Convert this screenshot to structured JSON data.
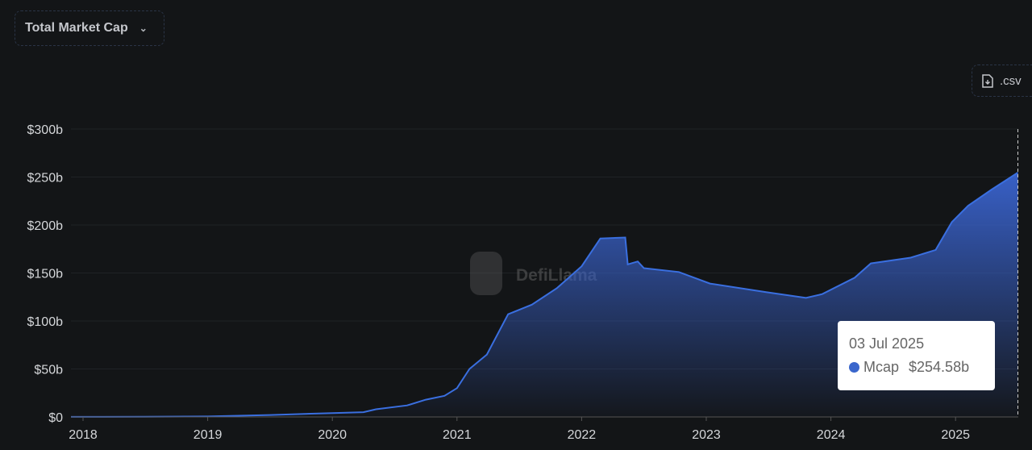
{
  "header": {
    "metric_select": "Total Market Cap",
    "csv_button": ".csv"
  },
  "watermark": "DefiLlama",
  "tooltip": {
    "date": "03 Jul 2025",
    "series": "Mcap",
    "value": "$254.58b"
  },
  "colors": {
    "line": "#3a6fe0",
    "background": "#131517",
    "marker": "#3a66cc"
  },
  "chart_data": {
    "type": "area",
    "ylim": [
      0,
      300
    ],
    "xlim": [
      2017.9,
      2025.51
    ],
    "yticks": [
      {
        "v": 0,
        "label": "$0"
      },
      {
        "v": 50,
        "label": "$50b"
      },
      {
        "v": 100,
        "label": "$100b"
      },
      {
        "v": 150,
        "label": "$150b"
      },
      {
        "v": 200,
        "label": "$200b"
      },
      {
        "v": 250,
        "label": "$250b"
      },
      {
        "v": 300,
        "label": "$300b"
      }
    ],
    "xticks": [
      {
        "v": 2018,
        "label": "2018"
      },
      {
        "v": 2019,
        "label": "2019"
      },
      {
        "v": 2020,
        "label": "2020"
      },
      {
        "v": 2021,
        "label": "2021"
      },
      {
        "v": 2022,
        "label": "2022"
      },
      {
        "v": 2023,
        "label": "2023"
      },
      {
        "v": 2024,
        "label": "2024"
      },
      {
        "v": 2025,
        "label": "2025"
      }
    ],
    "grid": true,
    "series": [
      {
        "name": "Mcap",
        "x": [
          2017.9,
          2018.5,
          2019.0,
          2019.5,
          2020.0,
          2020.25,
          2020.35,
          2020.6,
          2020.75,
          2020.9,
          2021.0,
          2021.1,
          2021.24,
          2021.41,
          2021.6,
          2021.8,
          2022.0,
          2022.15,
          2022.35,
          2022.37,
          2022.45,
          2022.5,
          2022.78,
          2023.03,
          2023.48,
          2023.8,
          2023.93,
          2024.19,
          2024.32,
          2024.64,
          2024.84,
          2024.97,
          2025.1,
          2025.29,
          2025.5
        ],
        "y": [
          0.1,
          0.2,
          0.5,
          2,
          4,
          5,
          8,
          12,
          18,
          22,
          30,
          50,
          65,
          107,
          117,
          134,
          157,
          186,
          187,
          159,
          162,
          155,
          151,
          139,
          130,
          124,
          128,
          145,
          160,
          166,
          174,
          203,
          220,
          237,
          254.58
        ]
      }
    ]
  }
}
